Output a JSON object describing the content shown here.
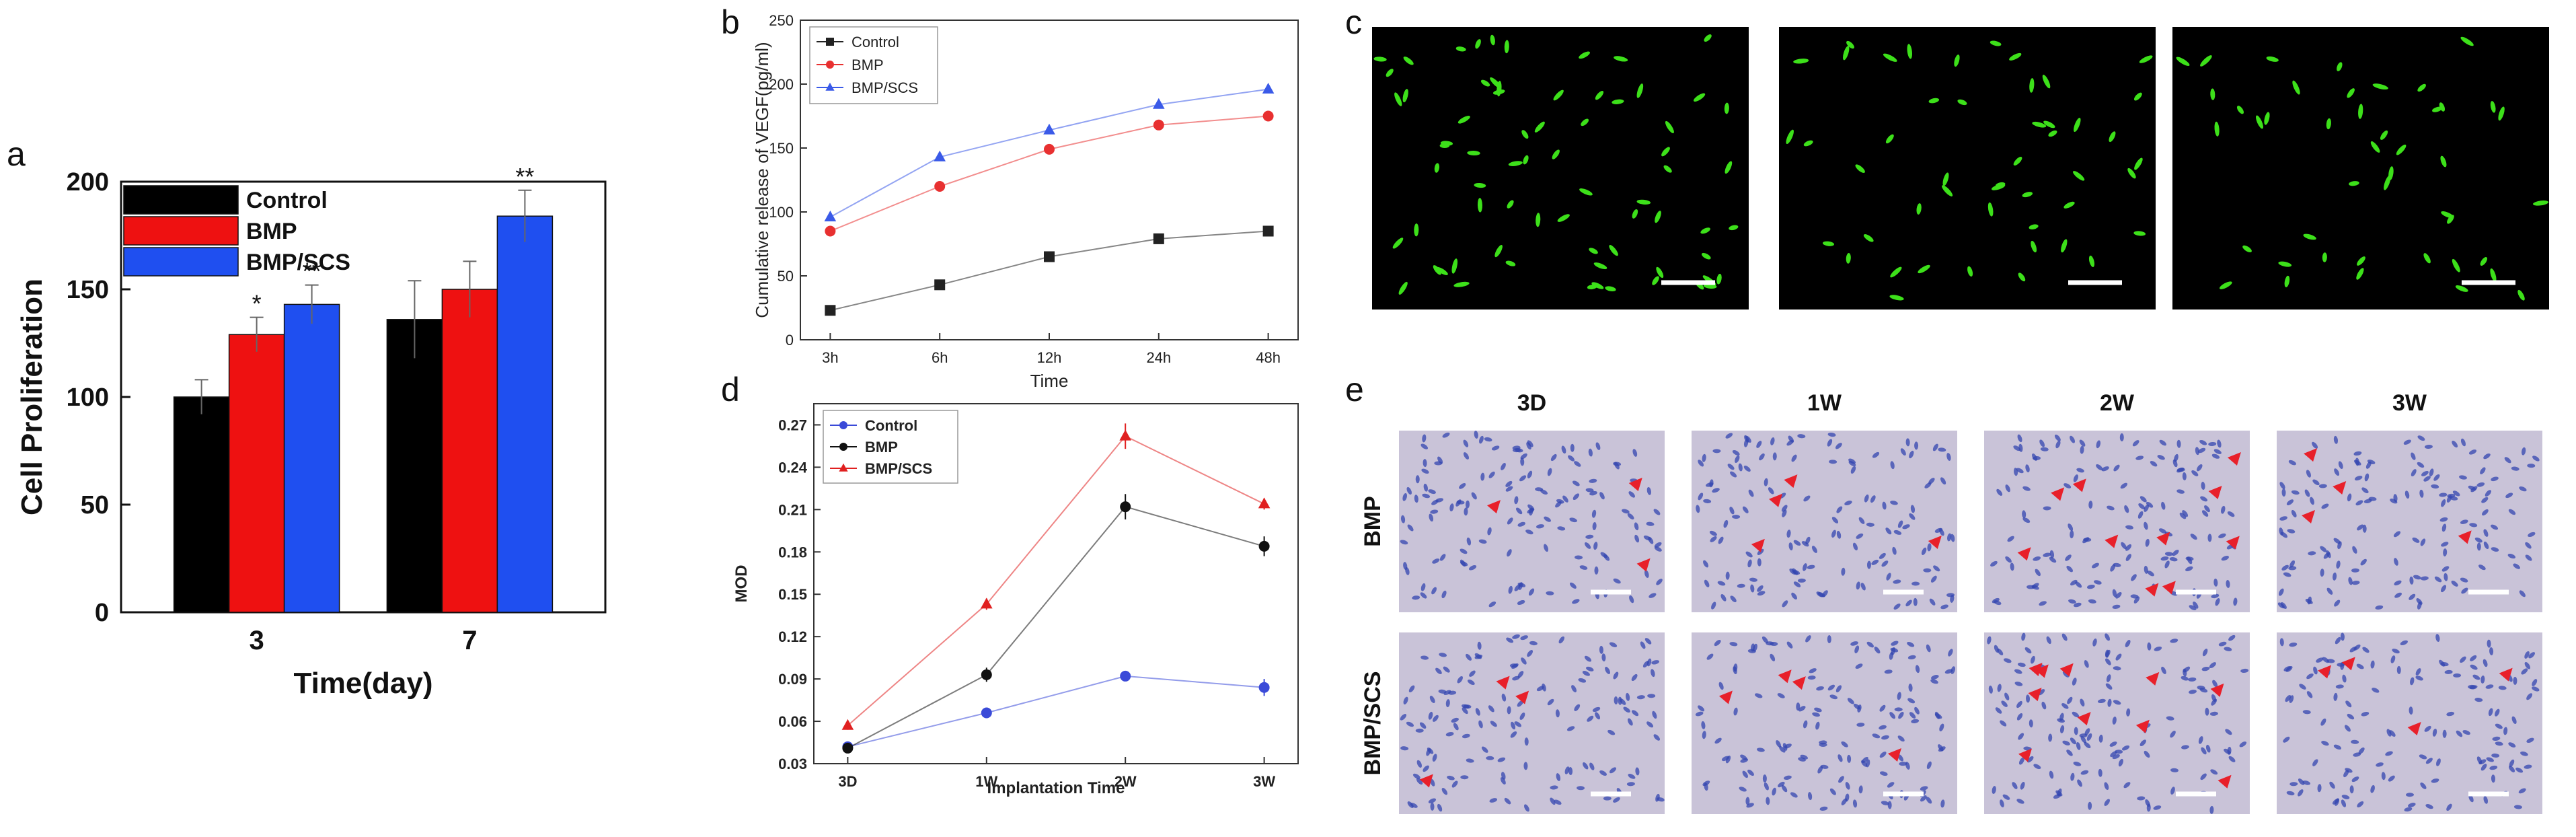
{
  "panel_labels": {
    "a": "a",
    "b": "b",
    "c": "c",
    "d": "d",
    "e": "e"
  },
  "chart_data": [
    {
      "id": "a",
      "type": "bar",
      "xlabel": "Time(day)",
      "ylabel": "Cell Proliferation",
      "categories": [
        "3",
        "7"
      ],
      "ylim": [
        0,
        200
      ],
      "yticks": [
        "0",
        "50",
        "100",
        "150",
        "200"
      ],
      "series": [
        {
          "name": "Control",
          "color": "#000000",
          "values": [
            100,
            136
          ],
          "errors": [
            8,
            18
          ],
          "marks": [
            "",
            ""
          ]
        },
        {
          "name": "BMP",
          "color": "#ee1111",
          "values": [
            129,
            150
          ],
          "errors": [
            8,
            13
          ],
          "marks": [
            "*",
            ""
          ]
        },
        {
          "name": "BMP/SCS",
          "color": "#1f4ff0",
          "values": [
            143,
            184
          ],
          "errors": [
            9,
            12
          ],
          "marks": [
            "**",
            "**"
          ]
        }
      ],
      "legend": "top-left"
    },
    {
      "id": "b",
      "type": "line",
      "xlabel": "Time",
      "ylabel": "Cumulative release of VEGF(pg/ml)",
      "categories": [
        "3h",
        "6h",
        "12h",
        "24h",
        "48h"
      ],
      "ylim": [
        0,
        250
      ],
      "yticks": [
        "0",
        "50",
        "100",
        "150",
        "200",
        "250"
      ],
      "series": [
        {
          "name": "Control",
          "color": "#222222",
          "marker": "square",
          "values": [
            23,
            43,
            65,
            79,
            85
          ]
        },
        {
          "name": "BMP",
          "color": "#e83030",
          "marker": "circle",
          "values": [
            85,
            120,
            149,
            168,
            175
          ]
        },
        {
          "name": "BMP/SCS",
          "color": "#3a5ae8",
          "marker": "triangle",
          "values": [
            96,
            143,
            164,
            184,
            196
          ]
        }
      ],
      "legend": "top-left"
    },
    {
      "id": "d",
      "type": "line",
      "xlabel": "Implantation Time",
      "ylabel": "MOD",
      "categories": [
        "3D",
        "1W",
        "2W",
        "3W"
      ],
      "ylim": [
        0.03,
        0.285
      ],
      "yticks": [
        "0.03",
        "0.06",
        "0.09",
        "0.12",
        "0.15",
        "0.18",
        "0.21",
        "0.24",
        "0.27"
      ],
      "series": [
        {
          "name": "Control",
          "color": "#3a4ad8",
          "marker": "circle",
          "values": [
            0.042,
            0.066,
            0.092,
            0.084
          ],
          "errors": [
            0.003,
            0.003,
            0.003,
            0.006
          ]
        },
        {
          "name": "BMP",
          "color": "#111111",
          "marker": "circle",
          "values": [
            0.041,
            0.093,
            0.212,
            0.184
          ],
          "errors": [
            0.003,
            0.005,
            0.009,
            0.007
          ]
        },
        {
          "name": "BMP/SCS",
          "color": "#e02020",
          "marker": "triangle",
          "values": [
            0.057,
            0.143,
            0.262,
            0.214
          ],
          "errors": [
            0.003,
            0.004,
            0.009,
            0.004
          ]
        }
      ],
      "legend": "top-left"
    }
  ],
  "panel_c": {
    "images": 3,
    "description_color": "#3de01a"
  },
  "panel_e": {
    "columns": [
      "3D",
      "1W",
      "2W",
      "3W"
    ],
    "rows": [
      "BMP",
      "BMP/SCS"
    ]
  }
}
